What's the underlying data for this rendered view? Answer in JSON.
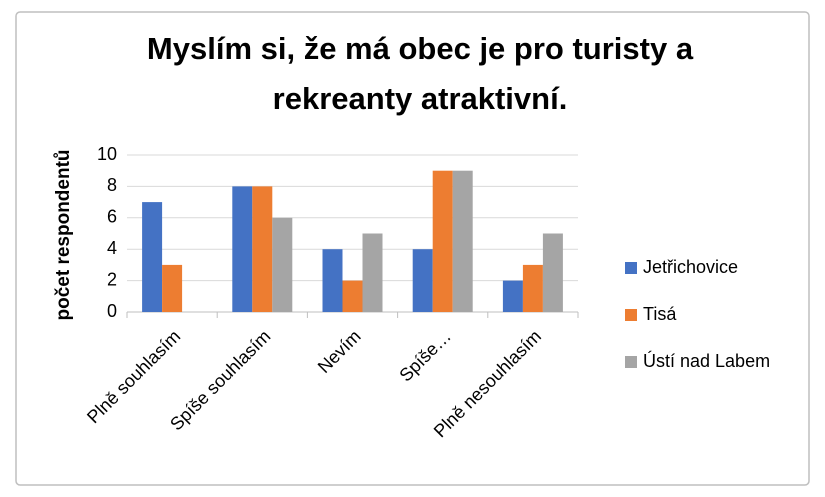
{
  "chart_data": {
    "type": "bar",
    "title": "Myslím si, že má obec je pro turisty a rekreanty atraktivní.",
    "y_label": "počet respondentů",
    "categories": [
      "Plně souhlasím",
      "Spíše souhlasím",
      "Nevím",
      "Spíše…",
      "Plně nesouhlasím"
    ],
    "series": [
      {
        "name": "Jetřichovice",
        "color": "#4472c4",
        "values": [
          7,
          8,
          4,
          4,
          2
        ]
      },
      {
        "name": "Tisá",
        "color": "#ed7d31",
        "values": [
          3,
          8,
          2,
          9,
          3
        ]
      },
      {
        "name": "Ústí nad Labem",
        "color": "#a5a5a5",
        "values": [
          0,
          6,
          5,
          9,
          5
        ]
      }
    ],
    "ylim": [
      0,
      10
    ],
    "yticks": [
      0,
      2,
      4,
      6,
      8,
      10
    ],
    "grid": true,
    "legend": "right"
  }
}
